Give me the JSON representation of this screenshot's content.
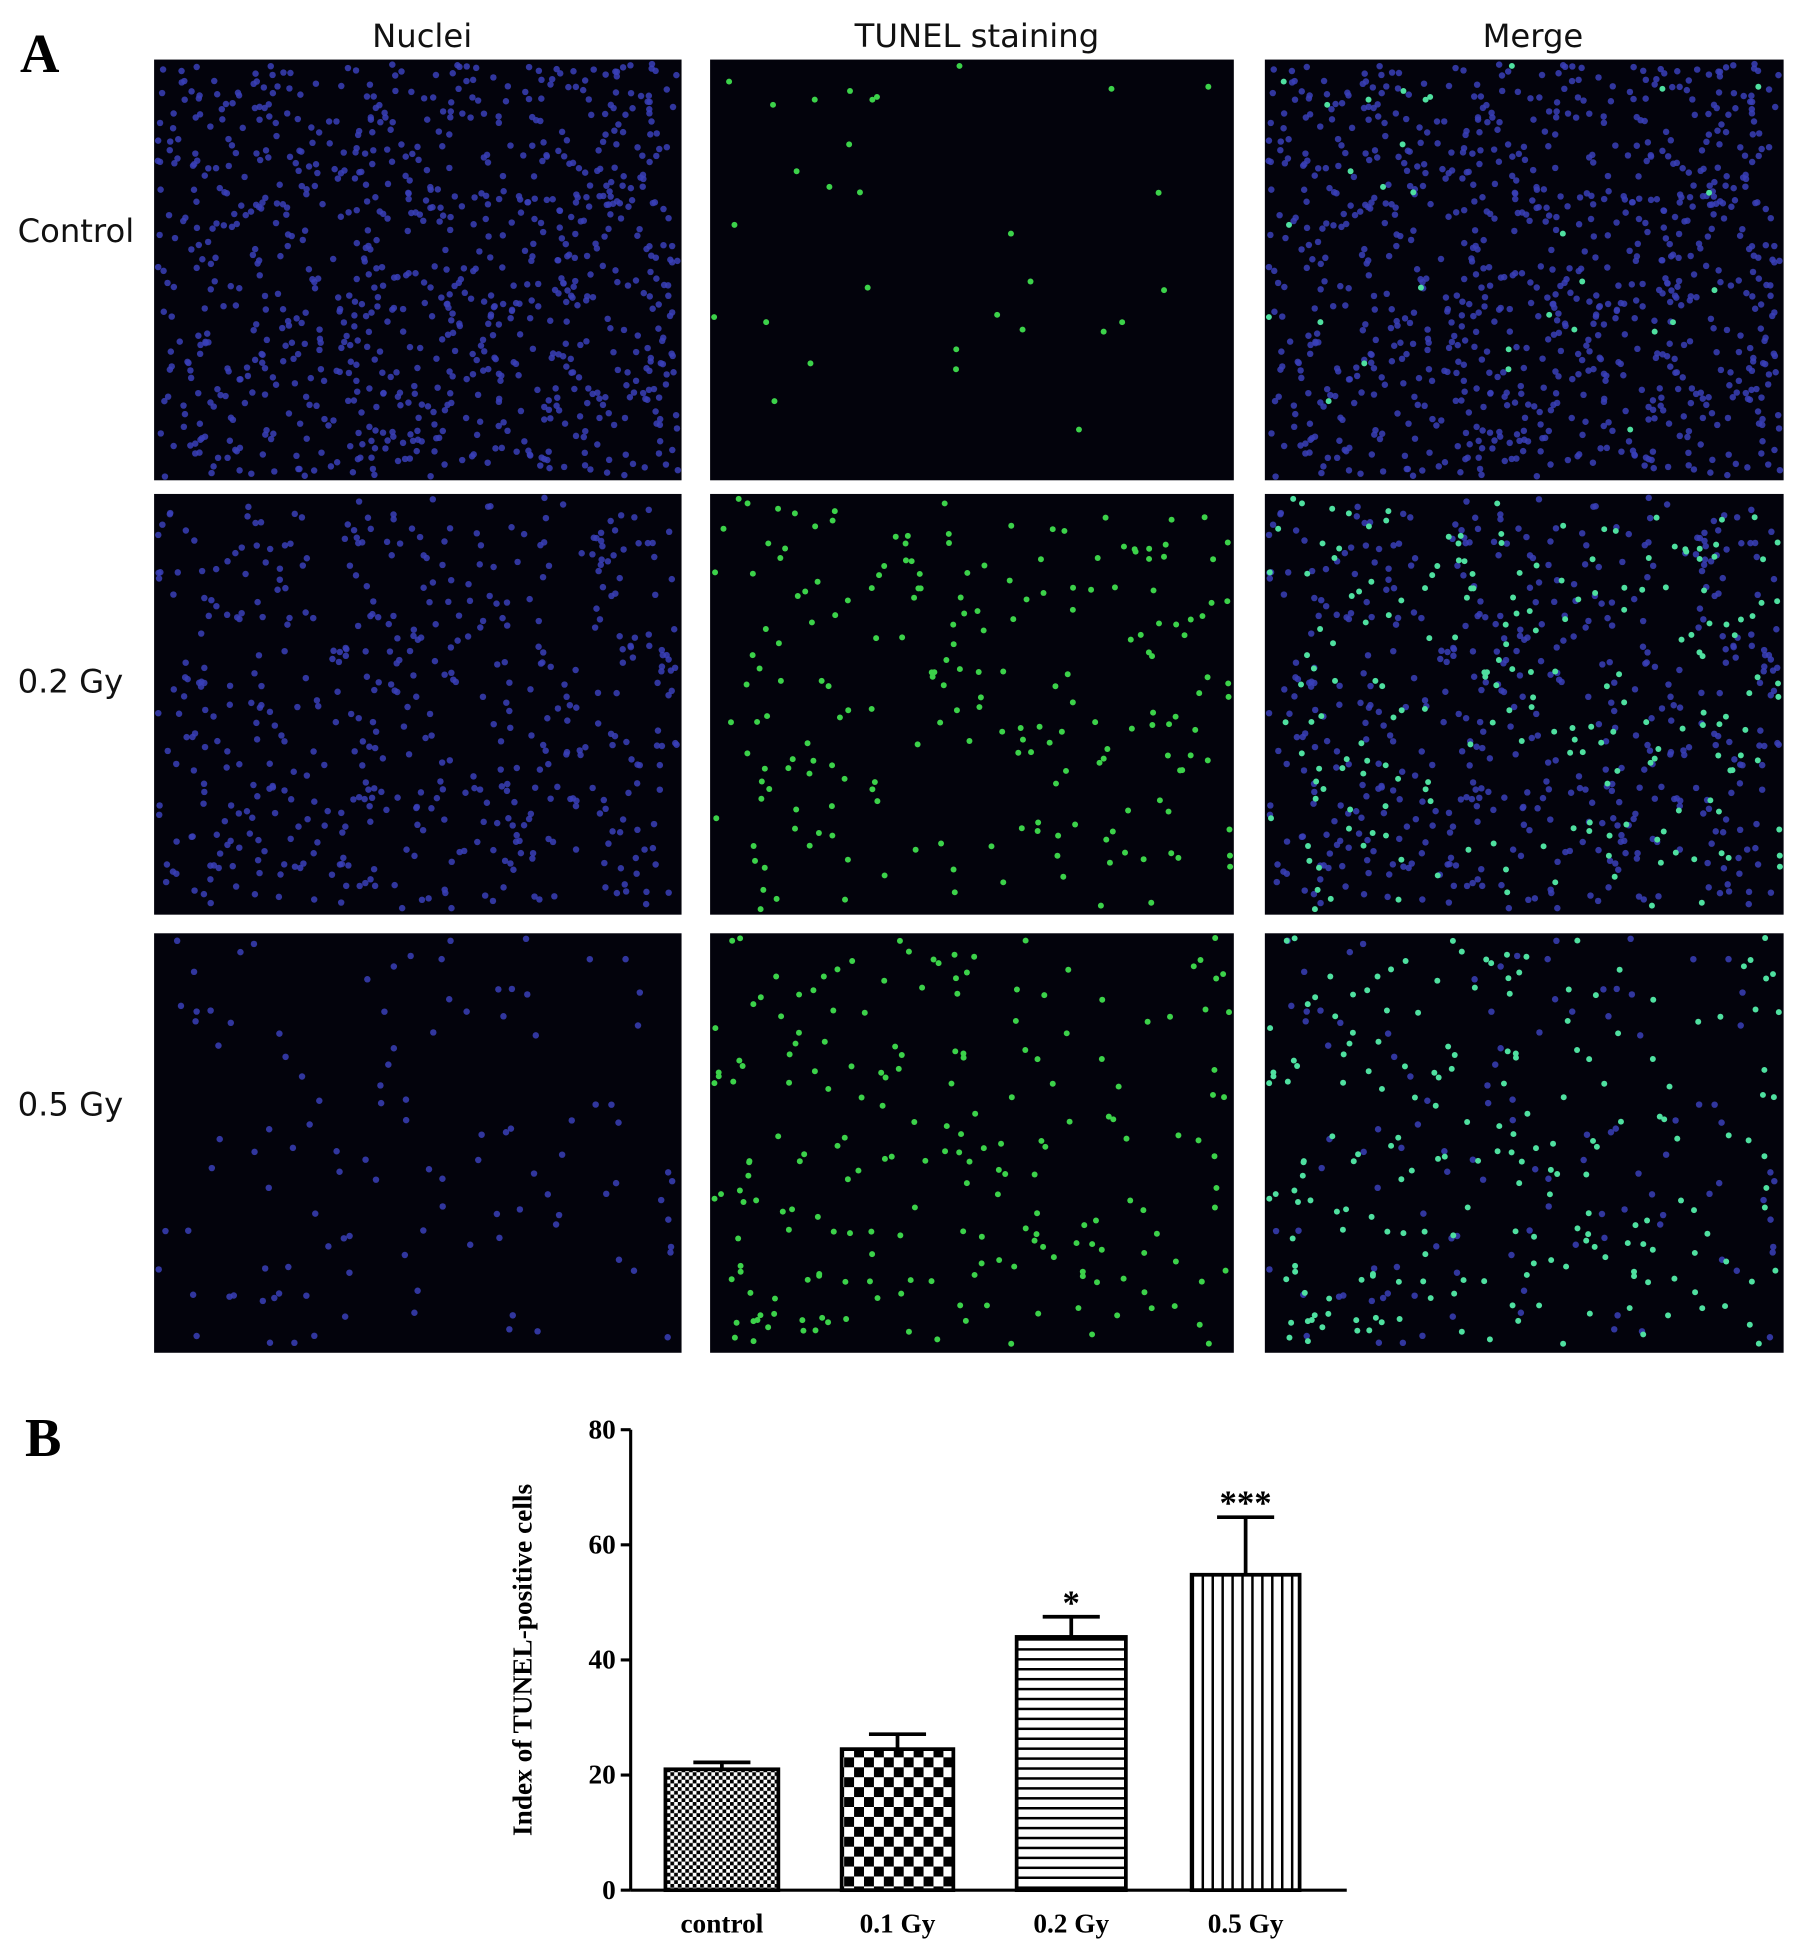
{
  "panel_labels": [
    "A",
    "B"
  ],
  "panel_a": {
    "column_headers": [
      "Nuclei",
      "TUNEL staining",
      "Merge"
    ],
    "row_labels": [
      "Control",
      "0.2 Gy",
      "0.5 Gy"
    ]
  },
  "chart_data": {
    "type": "bar",
    "y_label": "Index of TUNEL-positive cells",
    "categories": [
      "control",
      "0.1 Gy",
      "0.2 Gy",
      "0.5 Gy"
    ],
    "values": [
      21,
      24.5,
      44,
      54.8
    ],
    "errors": [
      1.2,
      2.6,
      3.5,
      10
    ],
    "annotations": [
      {
        "category": "0.2 Gy",
        "text": "*"
      },
      {
        "category": "0.5 Gy",
        "text": "***"
      }
    ],
    "color": "#000000",
    "patterns": [
      "fine-check",
      "check",
      "horizontal",
      "vertical"
    ],
    "ylim": [
      0,
      80
    ],
    "yticks": [
      0,
      20,
      40,
      60,
      80
    ]
  }
}
